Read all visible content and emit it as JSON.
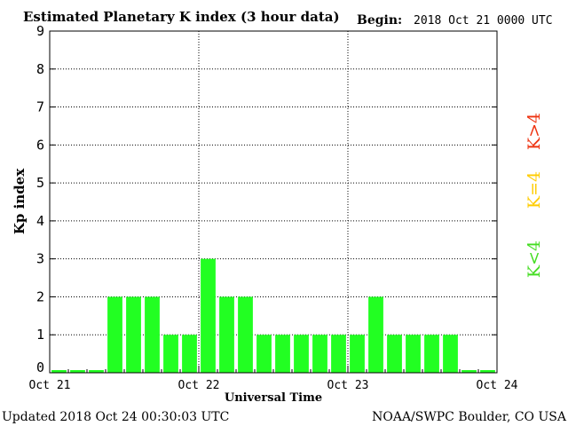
{
  "chart_data": {
    "type": "bar",
    "title": "Estimated Planetary K index (3 hour data)",
    "begin_label": "Begin:",
    "begin_value": "2018 Oct 21 0000 UTC",
    "ylabel": "Kp index",
    "xlabel": "Universal Time",
    "ylim": [
      0,
      9
    ],
    "y_ticks": [
      "0",
      "1",
      "2",
      "3",
      "4",
      "5",
      "6",
      "7",
      "8",
      "9"
    ],
    "x_tick_labels": [
      "Oct 21",
      "Oct 22",
      "Oct 23",
      "Oct 24"
    ],
    "grid": true,
    "values": [
      0,
      0,
      0,
      2,
      2,
      2,
      1,
      1,
      3,
      2,
      2,
      1,
      1,
      1,
      1,
      1,
      1,
      2,
      1,
      1,
      1,
      1,
      0,
      0
    ],
    "bar_color": "#22ff22",
    "legend": [
      {
        "label": "K<4",
        "color": "#44dd22"
      },
      {
        "label": "K=4",
        "color": "#ffcc00"
      },
      {
        "label": "K>4",
        "color": "#ee3311"
      }
    ]
  },
  "footer": {
    "updated": "Updated 2018 Oct 24 00:30:03 UTC",
    "source": "NOAA/SWPC Boulder, CO USA"
  }
}
